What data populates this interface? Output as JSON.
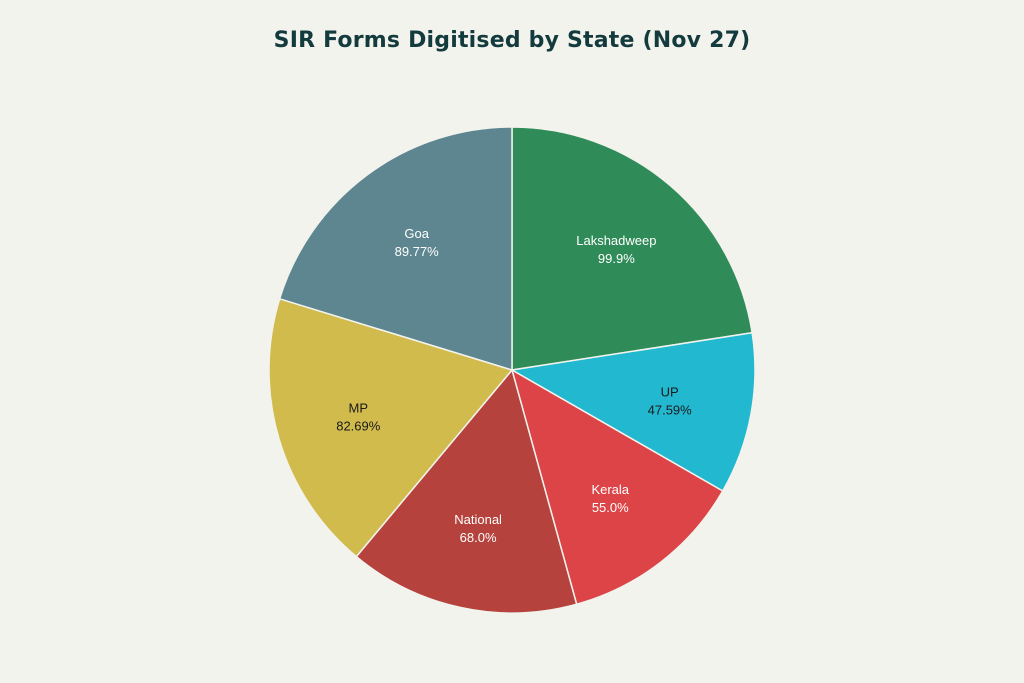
{
  "chart_data": {
    "type": "pie",
    "title": "SIR Forms Digitised by State (Nov 27)",
    "slices": [
      {
        "name": "Lakshadweep",
        "value": 99.9,
        "label": "99.9%",
        "color": "#2f8b58",
        "text_color": "#ffffff"
      },
      {
        "name": "UP",
        "value": 47.59,
        "label": "47.59%",
        "color": "#22b8cf",
        "text_color": "#1a1a1a"
      },
      {
        "name": "Kerala",
        "value": 55.0,
        "label": "55.0%",
        "color": "#dc4447",
        "text_color": "#ffffff"
      },
      {
        "name": "National",
        "value": 68.0,
        "label": "68.0%",
        "color": "#b5423c",
        "text_color": "#ffffff"
      },
      {
        "name": "MP",
        "value": 82.69,
        "label": "82.69%",
        "color": "#d1bb4d",
        "text_color": "#1a1a1a"
      },
      {
        "name": "Goa",
        "value": 89.77,
        "label": "89.77%",
        "color": "#5d8691",
        "text_color": "#ffffff"
      }
    ],
    "start_angle": "12 o'clock",
    "direction": "clockwise",
    "legend": "none"
  }
}
